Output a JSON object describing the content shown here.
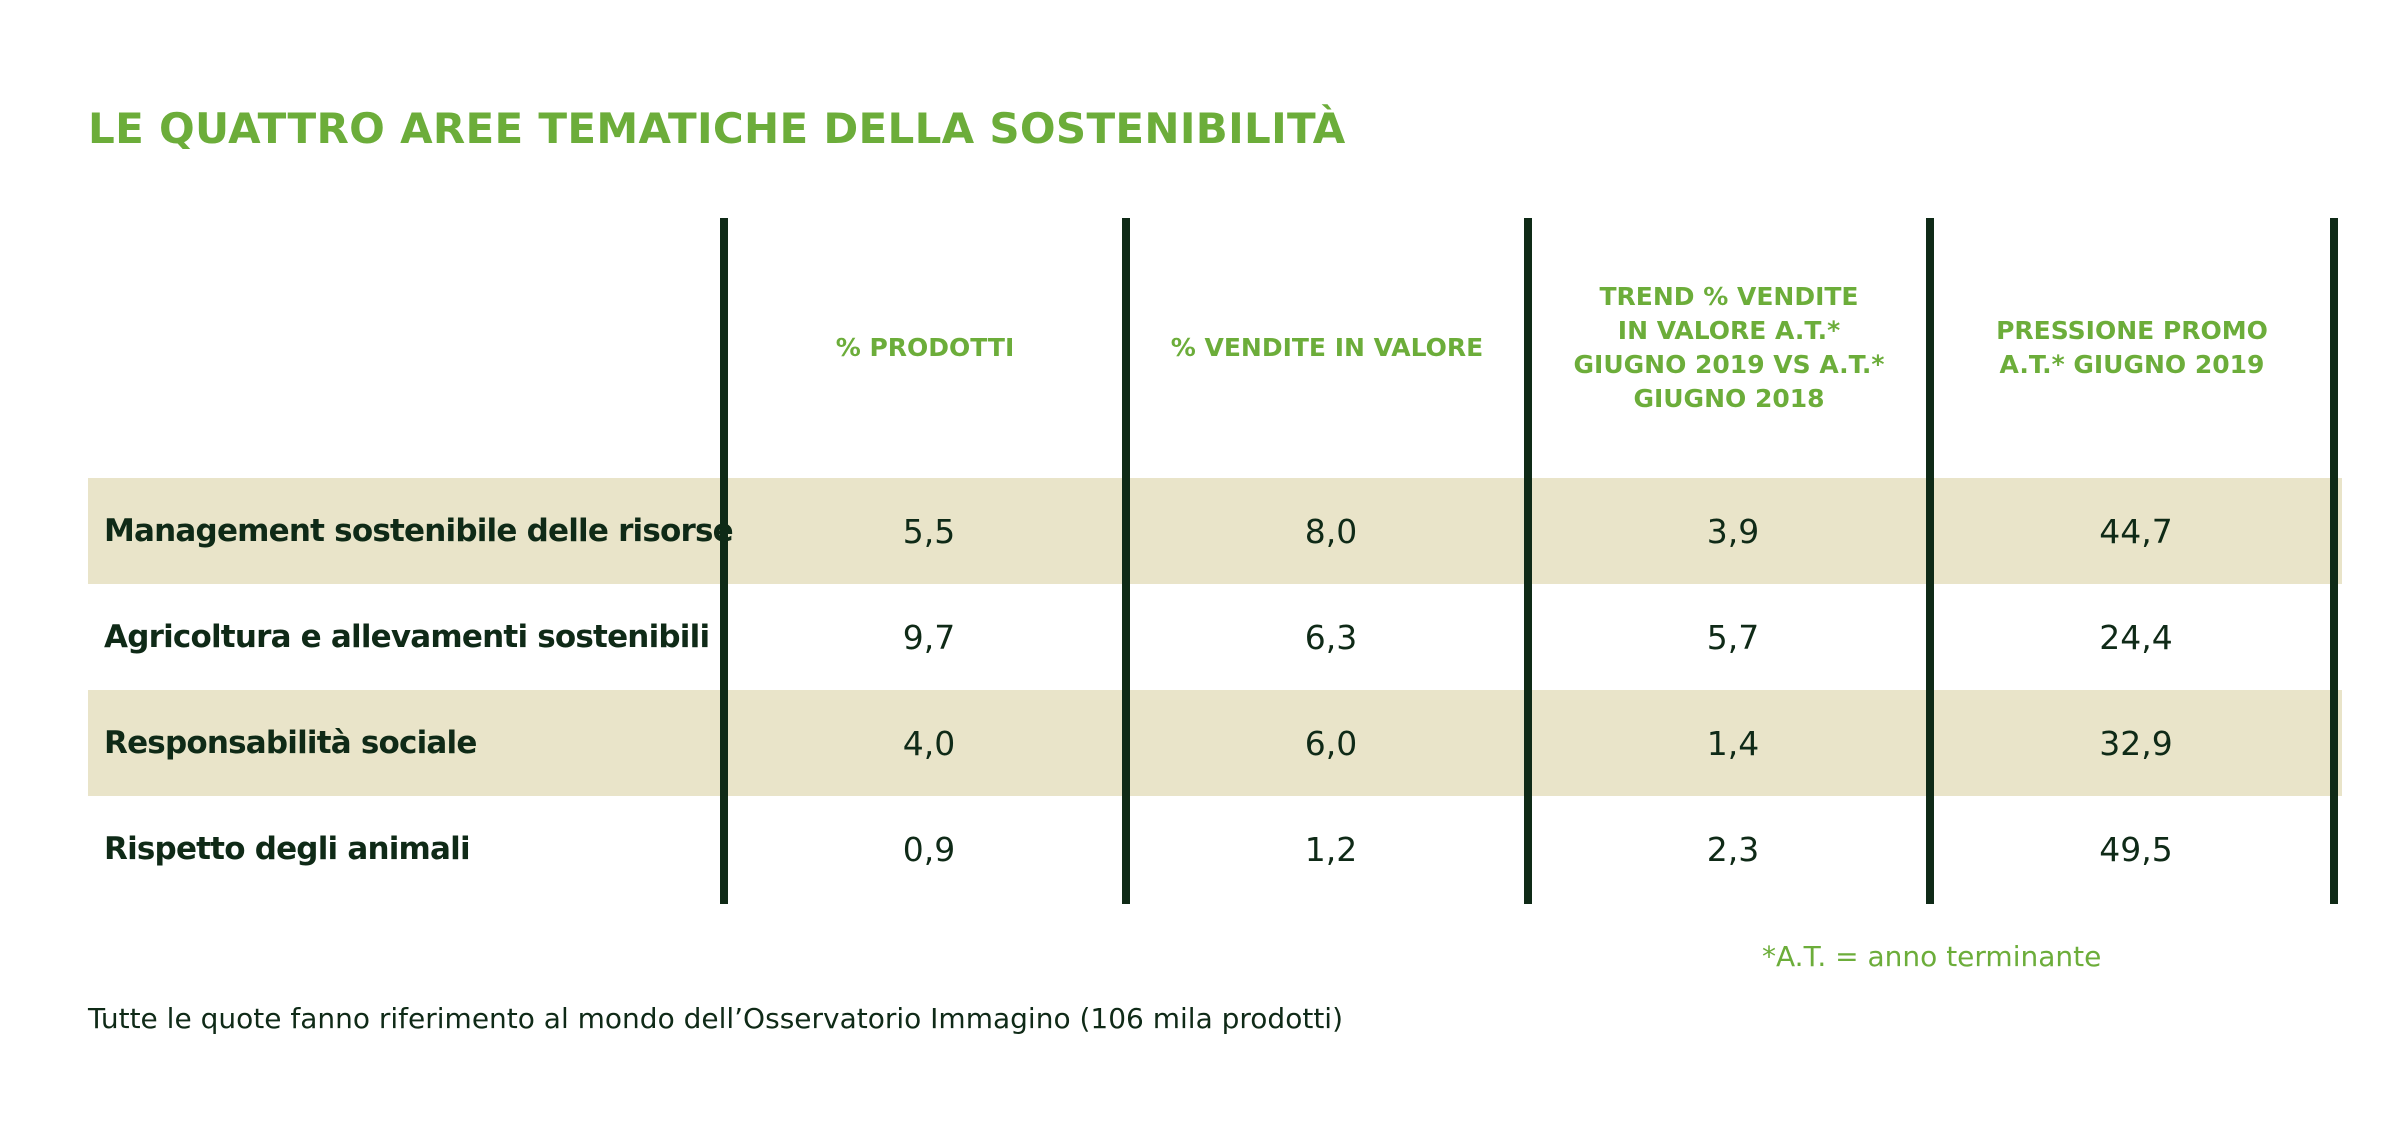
{
  "chart_data": {
    "type": "table",
    "title": "LE QUATTRO AREE TEMATICHE DELLA SOSTENIBILITÀ",
    "columns": [
      "% PRODOTTI",
      "% VENDITE IN VALORE",
      "TREND % VENDITE\nIN VALORE A.T.*\nGIUGNO 2019 VS A.T.*\nGIUGNO 2018",
      "PRESSIONE PROMO\nA.T.* GIUGNO 2019"
    ],
    "rows": [
      {
        "label": "Management sostenibile delle risorse",
        "values": [
          "5,5",
          "8,0",
          "3,9",
          "44,7"
        ]
      },
      {
        "label": "Agricoltura e allevamenti sostenibili",
        "values": [
          "9,7",
          "6,3",
          "5,7",
          "24,4"
        ]
      },
      {
        "label": "Responsabilità sociale",
        "values": [
          "4,0",
          "6,0",
          "1,4",
          "32,9"
        ]
      },
      {
        "label": "Rispetto degli animali",
        "values": [
          "0,9",
          "1,2",
          "2,3",
          "49,5"
        ]
      }
    ],
    "footnote": "*A.T. = anno terminante",
    "source_note": "Tutte le quote fanno riferimento al mondo dell’Osservatorio Immagino (106 mila prodotti)"
  },
  "colors": {
    "accent": "#6cad3a",
    "text_dark": "#0f2a17",
    "row_shade": "#e9e4c9",
    "divider": "#0f2a17"
  }
}
